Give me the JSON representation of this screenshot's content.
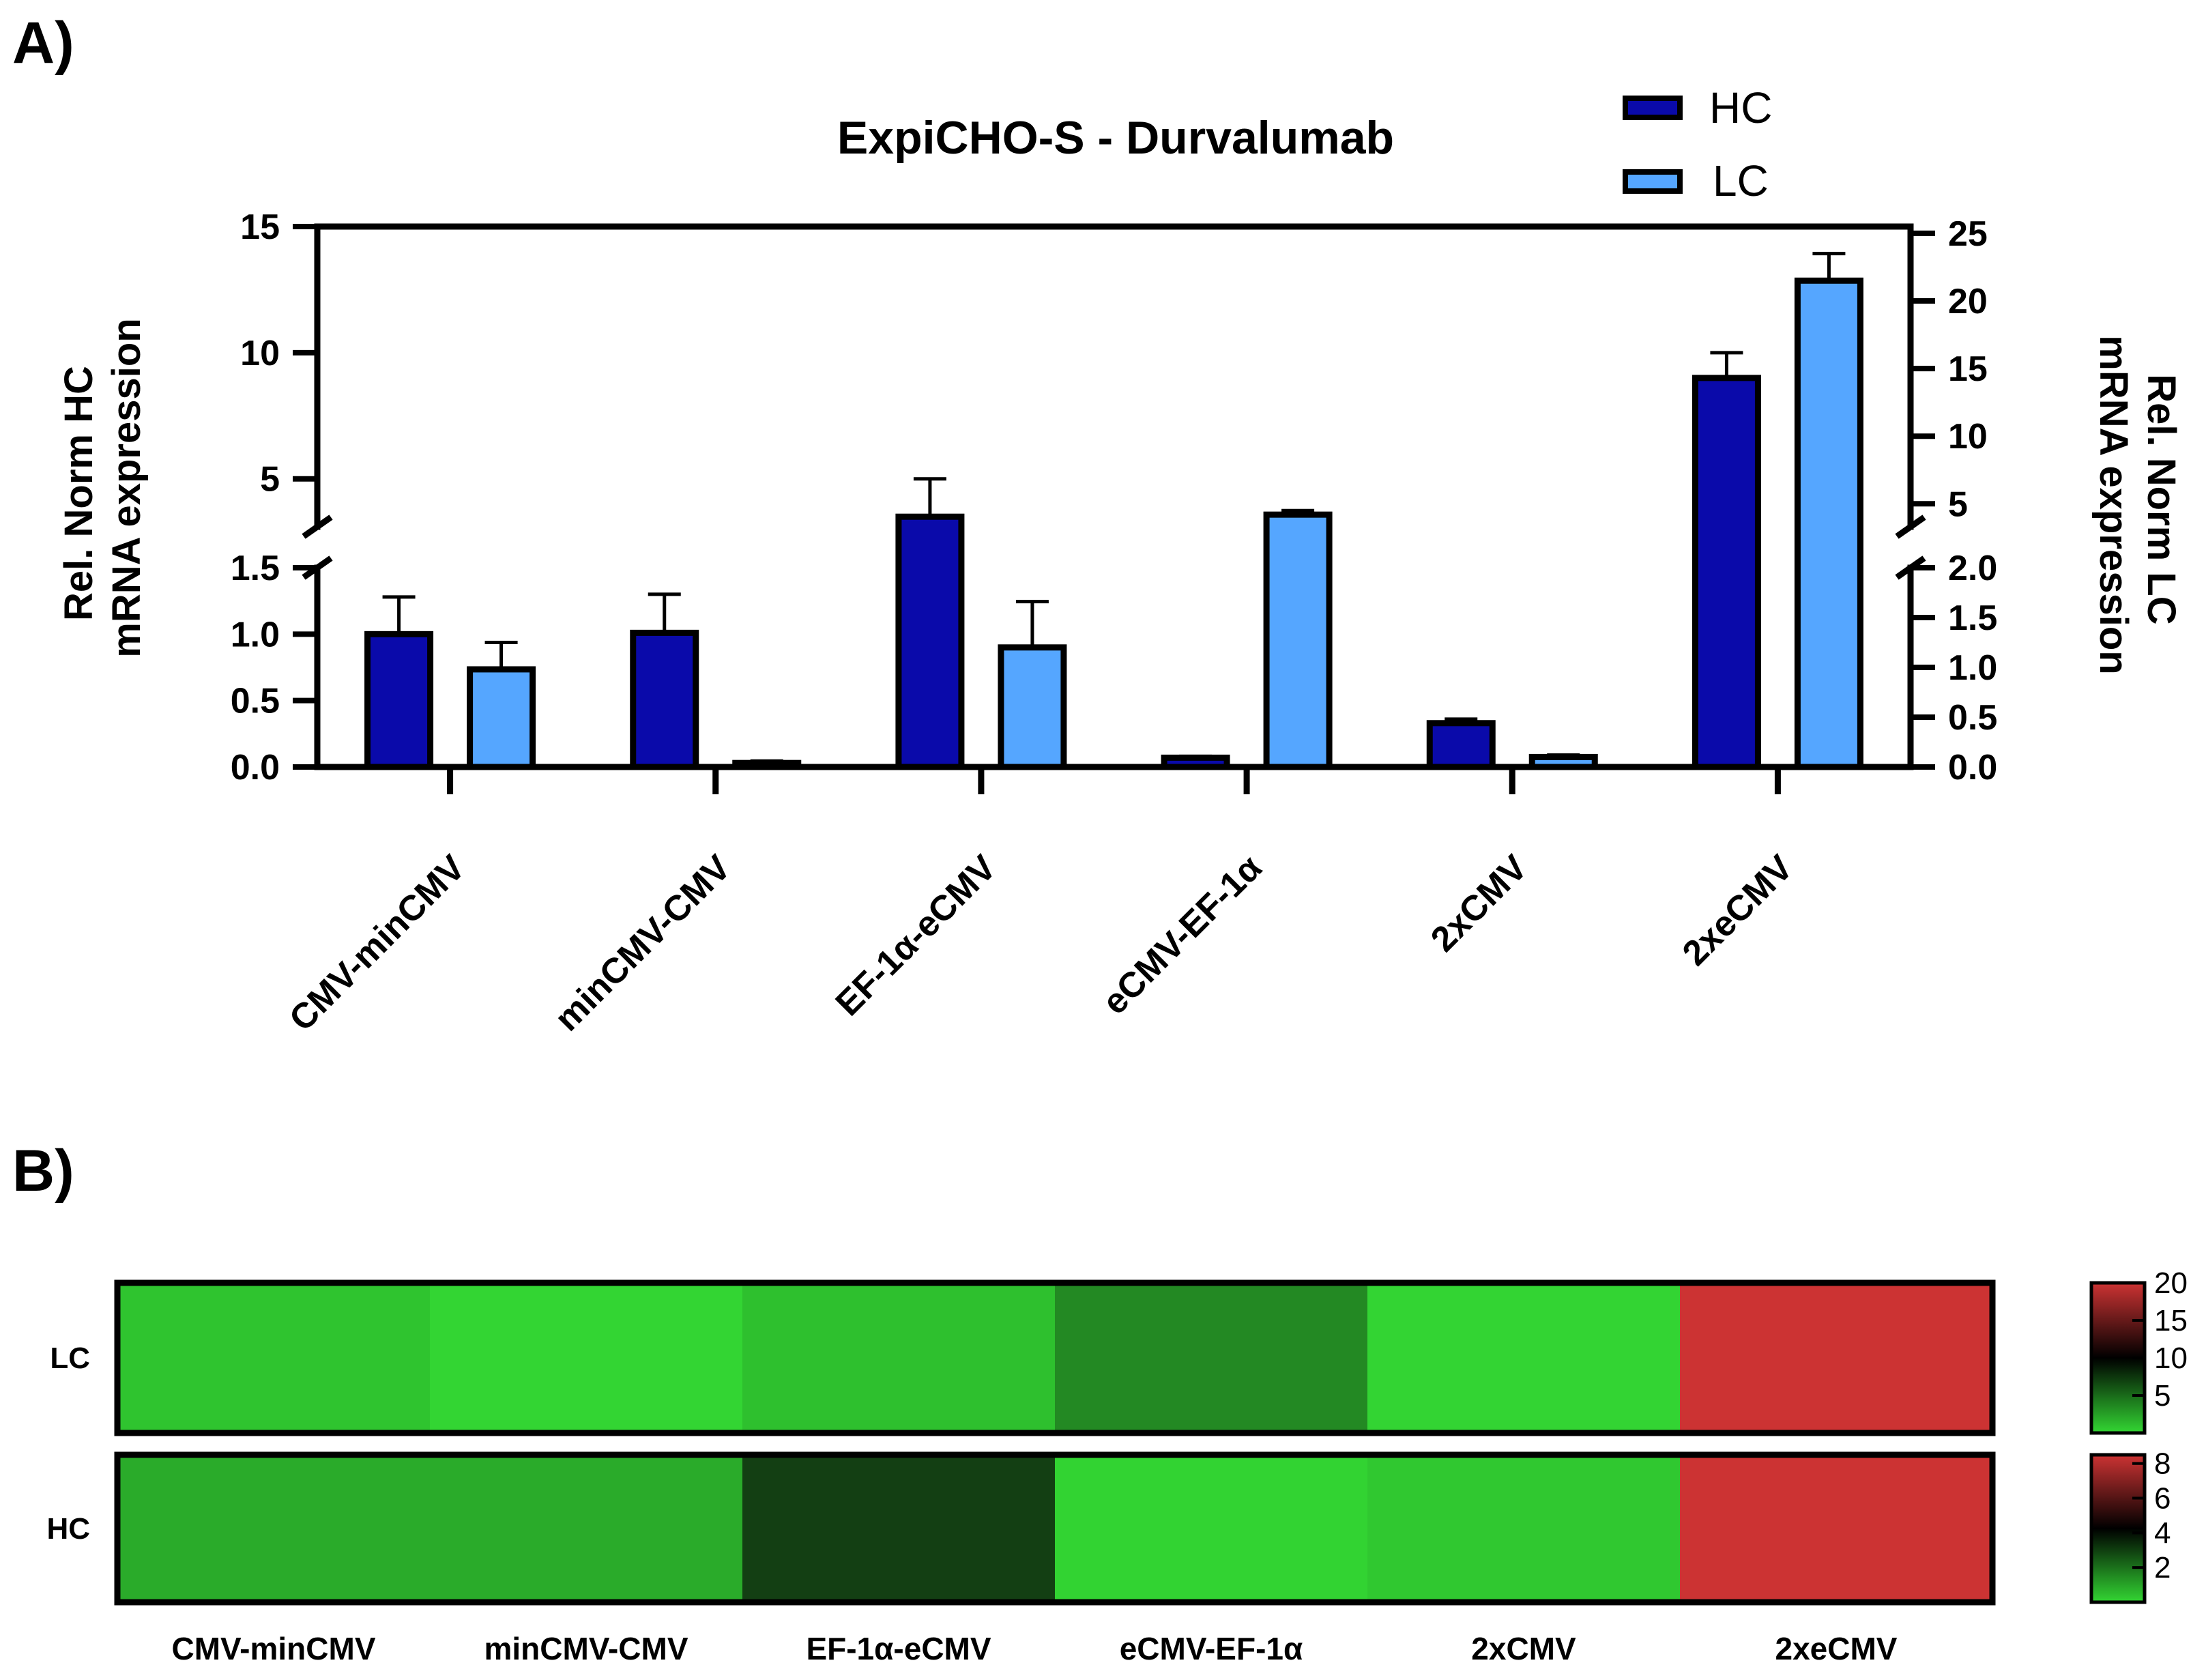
{
  "panel_labels": {
    "a": "A)",
    "b": "B)"
  },
  "colors": {
    "hc": "#0a0aaa",
    "lc": "#55a6ff",
    "heat_low": "#33d633",
    "heat_mid": "#0c1f0c",
    "heat_high": "#cc3333"
  },
  "chart_data": [
    {
      "type": "bar",
      "title": "ExpiCHO-S - Durvalumab",
      "categories": [
        "CMV-minCMV",
        "minCMV-CMV",
        "EF-1α-eCMV",
        "eCMV-EF-1α",
        "2xCMV",
        "2xeCMV"
      ],
      "legend": [
        "HC",
        "LC"
      ],
      "ylabel_left": [
        "Rel. Norm HC",
        "mRNA expression"
      ],
      "ylabel_right": [
        "Rel. Norm LC",
        "mRNA expression"
      ],
      "left_axis": {
        "lower_range": [
          0,
          1.5
        ],
        "lower_ticks": [
          "0.0",
          "0.5",
          "1.0",
          "1.5"
        ],
        "upper_range": [
          3.1,
          15
        ],
        "upper_ticks": [
          "5",
          "10",
          "15"
        ]
      },
      "right_axis": {
        "lower_range": [
          0,
          2.0
        ],
        "lower_ticks": [
          "0.0",
          "0.5",
          "1.0",
          "1.5",
          "2.0"
        ],
        "upper_range": [
          3.3,
          25.5
        ],
        "upper_ticks": [
          "5",
          "10",
          "15",
          "20",
          "25"
        ]
      },
      "series": [
        {
          "name": "HC",
          "axis": "left",
          "values": [
            1.0,
            1.01,
            3.5,
            0.07,
            0.33,
            9.0
          ],
          "errors": [
            0.28,
            0.29,
            1.5,
            0.01,
            0.03,
            1.0
          ]
        },
        {
          "name": "LC",
          "axis": "right",
          "values": [
            0.98,
            0.04,
            1.2,
            4.2,
            0.1,
            21.5
          ],
          "errors": [
            0.27,
            0.02,
            0.46,
            0.3,
            0.02,
            2.0
          ]
        }
      ]
    },
    {
      "type": "heatmap",
      "rows": [
        "LC",
        "HC"
      ],
      "columns": [
        "CMV-minCMV",
        "minCMV-CMV",
        "EF-1α-eCMV",
        "eCMV-EF-1α",
        "2xCMV",
        "2xeCMV"
      ],
      "values": [
        [
          1.0,
          0.04,
          1.2,
          4.2,
          0.1,
          21.5
        ],
        [
          1.0,
          1.01,
          3.5,
          0.07,
          0.33,
          9.0
        ]
      ],
      "colorbars": [
        {
          "row": "LC",
          "range": [
            0,
            20
          ],
          "ticks": [
            "20",
            "15",
            "10",
            "5"
          ]
        },
        {
          "row": "HC",
          "range": [
            0,
            8.5
          ],
          "ticks": [
            "8",
            "6",
            "4",
            "2"
          ]
        }
      ]
    }
  ]
}
